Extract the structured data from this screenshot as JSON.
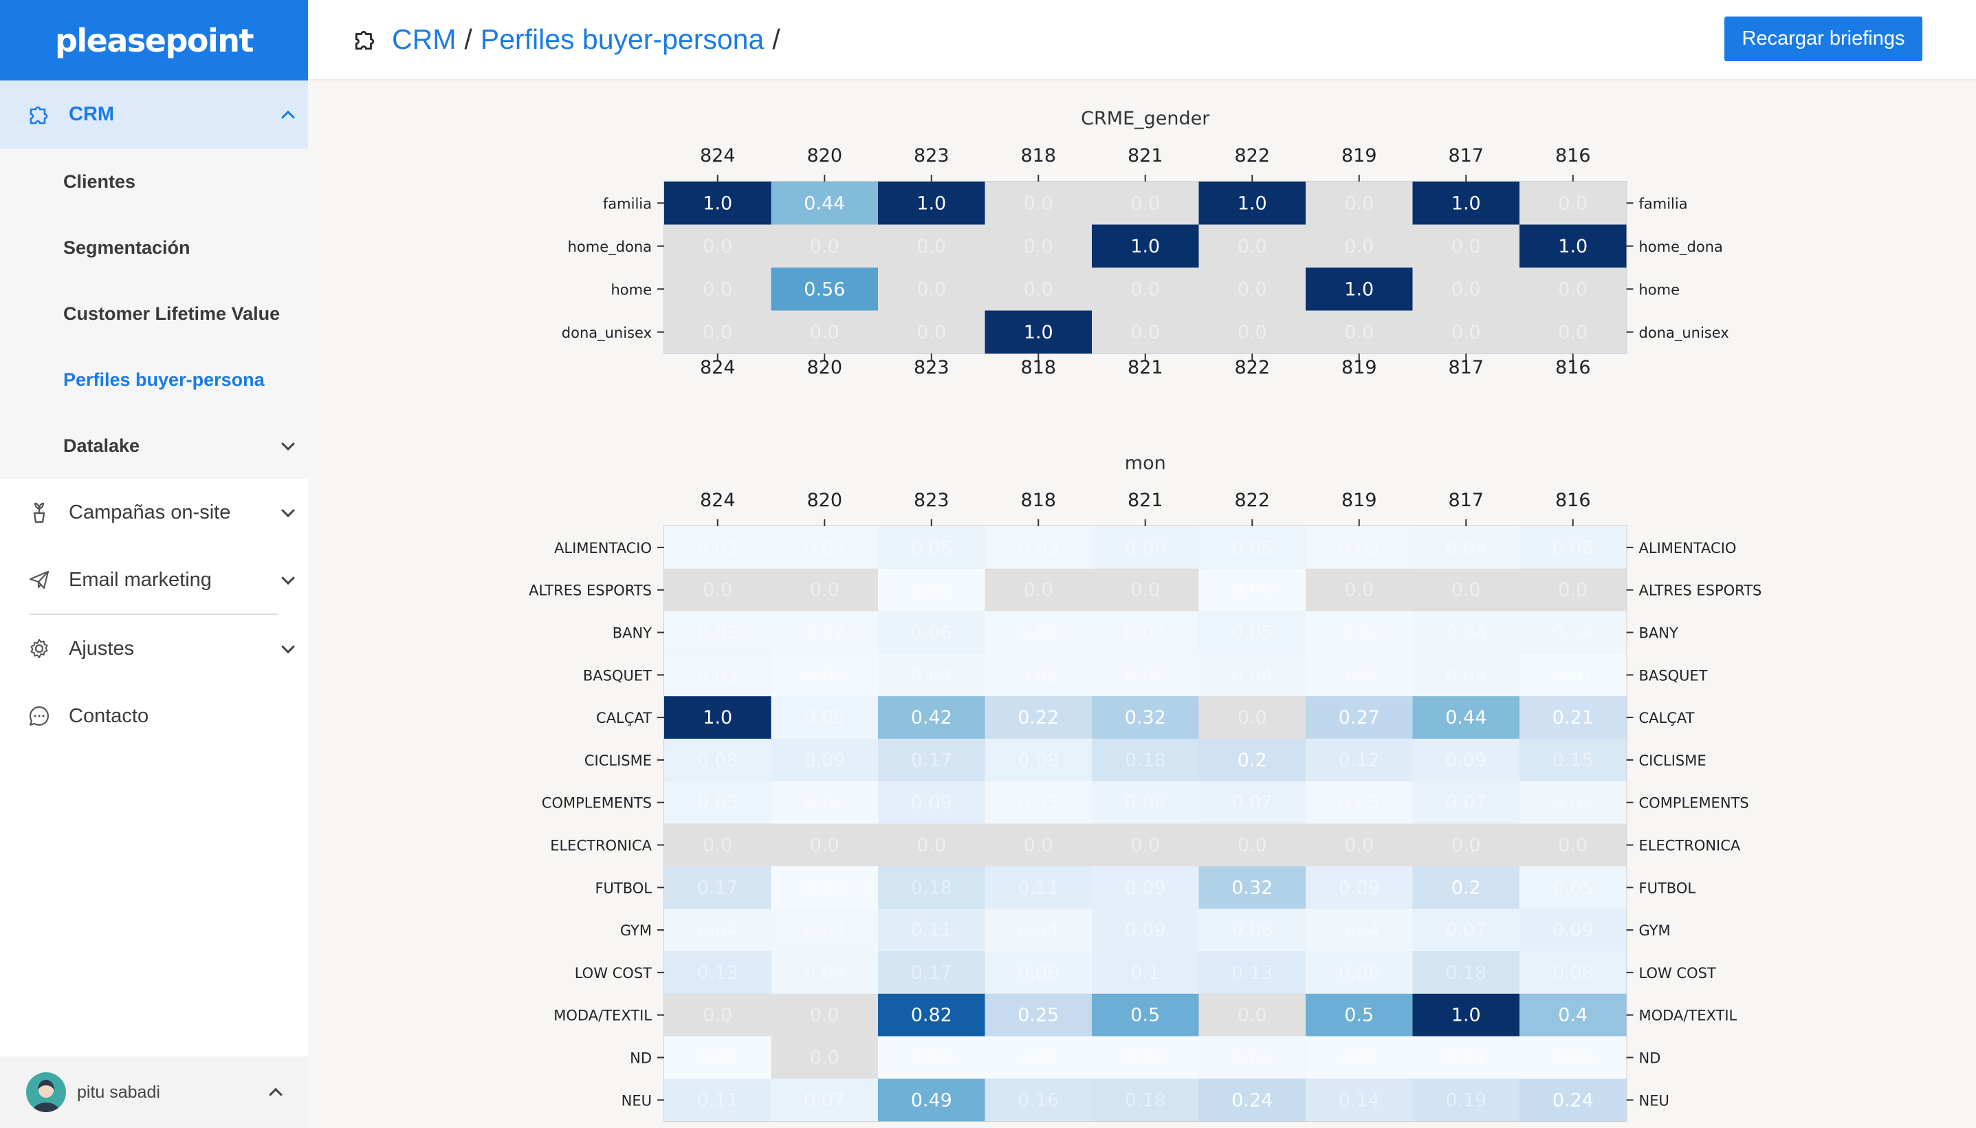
{
  "sidebar": {
    "brand": "pleasepoint",
    "crm_label": "CRM",
    "sub_items": [
      {
        "label": "Clientes"
      },
      {
        "label": "Segmentación"
      },
      {
        "label": "Customer Lifetime Value"
      },
      {
        "label": "Perfiles buyer-persona"
      },
      {
        "label": "Datalake"
      }
    ],
    "items": [
      {
        "label": "Campañas on-site",
        "icon": "plant-icon"
      },
      {
        "label": "Email marketing",
        "icon": "paper-plane-icon"
      },
      {
        "label": "Ajustes",
        "icon": "gear-icon"
      },
      {
        "label": "Contacto",
        "icon": "chat-bubble-icon"
      }
    ],
    "user": {
      "name": "pitu sabadi"
    }
  },
  "header": {
    "breadcrumb": [
      "CRM",
      "Perfiles buyer-persona"
    ],
    "separator": "/",
    "reload_label": "Recargar briefings"
  },
  "colors": {
    "accent": "#1a7be6",
    "sidebar_active_bg": "#ddeafa",
    "cmap": "Blues",
    "zero_cell": "#e0e0e0"
  },
  "chart_data": [
    {
      "type": "heatmap",
      "title": "CRME_gender",
      "columns": [
        "824",
        "820",
        "823",
        "818",
        "821",
        "822",
        "819",
        "817",
        "816"
      ],
      "rows": [
        "familia",
        "home_dona",
        "home",
        "dona_unisex"
      ],
      "values": [
        [
          "1.0",
          "0.44",
          "1.0",
          "0.0",
          "0.0",
          "1.0",
          "0.0",
          "1.0",
          "0.0"
        ],
        [
          "0.0",
          "0.0",
          "0.0",
          "0.0",
          "1.0",
          "0.0",
          "0.0",
          "0.0",
          "1.0"
        ],
        [
          "0.0",
          "0.56",
          "0.0",
          "0.0",
          "0.0",
          "0.0",
          "1.0",
          "0.0",
          "0.0"
        ],
        [
          "0.0",
          "0.0",
          "0.0",
          "1.0",
          "0.0",
          "0.0",
          "0.0",
          "0.0",
          "0.0"
        ]
      ]
    },
    {
      "type": "heatmap",
      "title": "mon",
      "columns": [
        "824",
        "820",
        "823",
        "818",
        "821",
        "822",
        "819",
        "817",
        "816"
      ],
      "rows": [
        "ALIMENTACIO",
        "ALTRES ESPORTS",
        "BANY",
        "BASQUET",
        "CALÇAT",
        "CICLISME",
        "COMPLEMENTS",
        "ELECTRONICA",
        "FUTBOL",
        "GYM",
        "LOW COST",
        "MODA/TEXTIL",
        "ND",
        "NEU"
      ],
      "values": [
        [
          "0.03",
          "0.03",
          "0.06",
          "0.03",
          "0.06",
          "0.05",
          "0.03",
          "0.04",
          "0.06"
        ],
        [
          "0.0",
          "0.0",
          "0.01",
          "0.0",
          "0.0",
          "0.01",
          "0.0",
          "0.0",
          "0.0"
        ],
        [
          "0.03",
          "0.02",
          "0.06",
          "0.02",
          "0.03",
          "0.05",
          "0.02",
          "0.04",
          "0.04"
        ],
        [
          "0.03",
          "0.01",
          "0.04",
          "0.02",
          "0.02",
          "0.04",
          "0.02",
          "0.04",
          "0.01"
        ],
        [
          "1.0",
          "0.05",
          "0.42",
          "0.22",
          "0.32",
          "0.0",
          "0.27",
          "0.44",
          "0.21"
        ],
        [
          "0.08",
          "0.09",
          "0.17",
          "0.08",
          "0.18",
          "0.2",
          "0.12",
          "0.09",
          "0.15"
        ],
        [
          "0.05",
          "0.02",
          "0.09",
          "0.03",
          "0.06",
          "0.07",
          "0.03",
          "0.07",
          "0.04"
        ],
        [
          "0.0",
          "0.0",
          "0.0",
          "0.0",
          "0.0",
          "0.0",
          "0.0",
          "0.0",
          "0.0"
        ],
        [
          "0.17",
          "0.01",
          "0.18",
          "0.11",
          "0.09",
          "0.32",
          "0.09",
          "0.2",
          "0.05"
        ],
        [
          "0.04",
          "0.03",
          "0.11",
          "0.04",
          "0.09",
          "0.06",
          "0.04",
          "0.07",
          "0.09"
        ],
        [
          "0.13",
          "0.04",
          "0.17",
          "0.06",
          "0.1",
          "0.13",
          "0.06",
          "0.18",
          "0.08"
        ],
        [
          "0.0",
          "0.0",
          "0.82",
          "0.25",
          "0.5",
          "0.0",
          "0.5",
          "1.0",
          "0.4"
        ],
        [
          "0.01",
          "0.0",
          "0.01",
          "0.01",
          "0.01",
          "0.02",
          "0.01",
          "0.01",
          "0.01"
        ],
        [
          "0.11",
          "0.07",
          "0.49",
          "0.16",
          "0.18",
          "0.24",
          "0.14",
          "0.19",
          "0.24"
        ]
      ]
    }
  ]
}
